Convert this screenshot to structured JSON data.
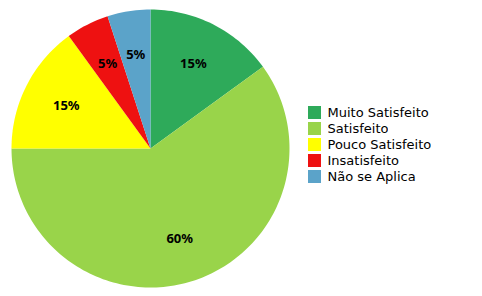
{
  "chart_data": {
    "type": "pie",
    "categories": [
      "Muito Satisfeito",
      "Satisfeito",
      "Pouco Satisfeito",
      "Insatisfeito",
      "Não se Aplica"
    ],
    "values": [
      15,
      60,
      15,
      5,
      5
    ],
    "value_labels": [
      "15%",
      "60%",
      "15%",
      "5%",
      "5%"
    ],
    "colors": [
      "#2eaa5a",
      "#99d44a",
      "#ffff00",
      "#ee1111",
      "#5ba3c9"
    ],
    "data_labels": true,
    "legend": "right"
  }
}
